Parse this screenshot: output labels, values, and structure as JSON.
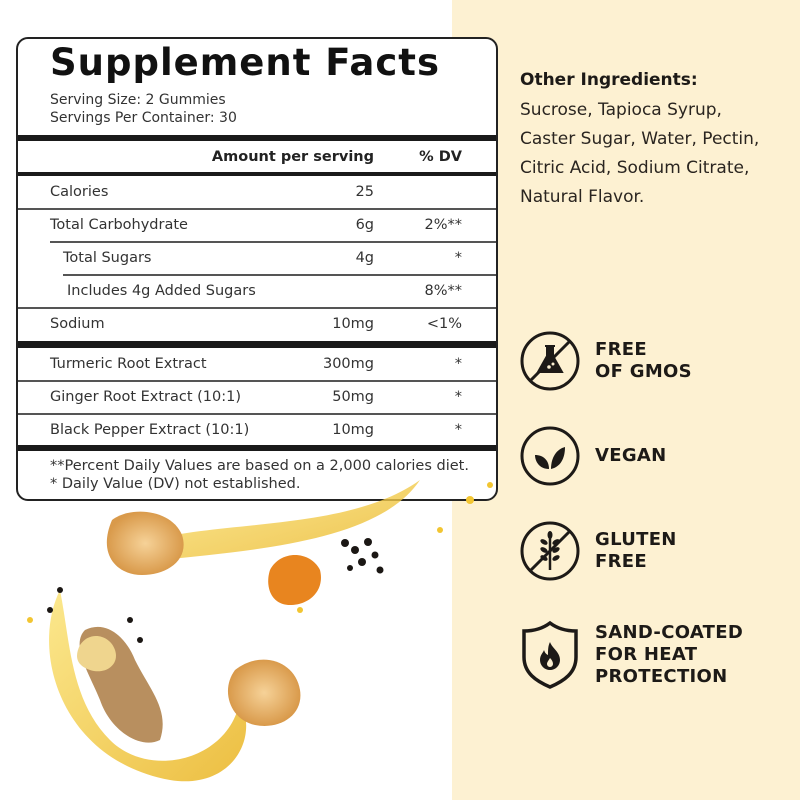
{
  "supplement_facts": {
    "title": "Supplement Facts",
    "serving_size": "Serving Size: 2 Gummies",
    "servings_per_container": "Servings Per Container: 30",
    "header": {
      "amount": "Amount per serving",
      "dv": "% DV"
    },
    "rows": [
      {
        "label": "Calories",
        "amount": "25",
        "dv": ""
      },
      {
        "label": "Total Carbohydrate",
        "amount": "6g",
        "dv": "2%**"
      },
      {
        "label": "Total Sugars",
        "amount": "4g",
        "dv": "*"
      },
      {
        "label": "Includes 4g Added Sugars",
        "amount": "",
        "dv": "8%**"
      },
      {
        "label": "Sodium",
        "amount": "10mg",
        "dv": "<1%"
      },
      {
        "label": "Turmeric Root Extract",
        "amount": "300mg",
        "dv": "*"
      },
      {
        "label": "Ginger Root Extract (10:1)",
        "amount": "50mg",
        "dv": "*"
      },
      {
        "label": "Black Pepper Extract (10:1)",
        "amount": "10mg",
        "dv": "*"
      }
    ],
    "footnotes": [
      "**Percent Daily Values are based on a 2,000 calories diet.",
      "* Daily Value (DV) not established."
    ]
  },
  "other_ingredients": {
    "heading": "Other Ingredients:",
    "text": "Sucrose, Tapioca Syrup, Caster Sugar, Water, Pectin, Citric Acid, Sodium Citrate, Natural Flavor."
  },
  "badges": [
    {
      "icon": "no-gmo-flask-icon",
      "line1": "FREE",
      "line2": "OF GMOS",
      "line3": ""
    },
    {
      "icon": "leaf-icon",
      "line1": "VEGAN",
      "line2": "",
      "line3": ""
    },
    {
      "icon": "no-wheat-icon",
      "line1": "GLUTEN",
      "line2": "FREE",
      "line3": ""
    },
    {
      "icon": "shield-flame-icon",
      "line1": "SAND-COATED",
      "line2": "FOR HEAT",
      "line3": "PROTECTION"
    }
  ],
  "colors": {
    "background_cream": "#fdf1d2",
    "text_dark": "#1d1a17",
    "oil_gold": "#f2c531",
    "gummy": "#e9b46a",
    "turmeric": "#e8851f"
  }
}
